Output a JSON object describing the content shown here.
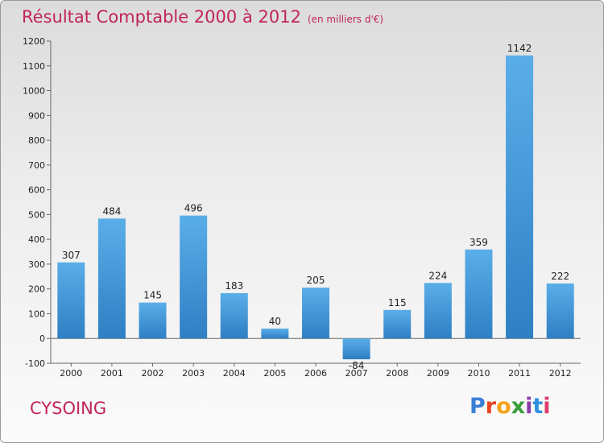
{
  "title": "Résultat Comptable 2000 à 2012",
  "subtitle": "(en milliers d'€)",
  "commune": "CYSOING",
  "logo": {
    "letters": [
      "P",
      "r",
      "o",
      "x",
      "i",
      "t",
      "i"
    ],
    "colors": [
      "#3a7fd5",
      "#e8431f",
      "#f6a21a",
      "#3a9e3a",
      "#8a3ea8",
      "#2f8fe0",
      "#e03a6b"
    ]
  },
  "colors": {
    "bar": "#3d92d8",
    "bar_light": "#5aaee8",
    "bar_dark": "#2f7fc4",
    "title": "#c0245a"
  },
  "chart_data": {
    "type": "bar",
    "categories": [
      "2000",
      "2001",
      "2002",
      "2003",
      "2004",
      "2005",
      "2006",
      "2007",
      "2008",
      "2009",
      "2010",
      "2011",
      "2012"
    ],
    "values": [
      307,
      484,
      145,
      496,
      183,
      40,
      205,
      -84,
      115,
      224,
      359,
      1142,
      222
    ],
    "yticks": [
      -100,
      0,
      100,
      200,
      300,
      400,
      500,
      600,
      700,
      800,
      900,
      1000,
      1100,
      1200
    ],
    "ylim": [
      -100,
      1200
    ],
    "grid": false
  }
}
